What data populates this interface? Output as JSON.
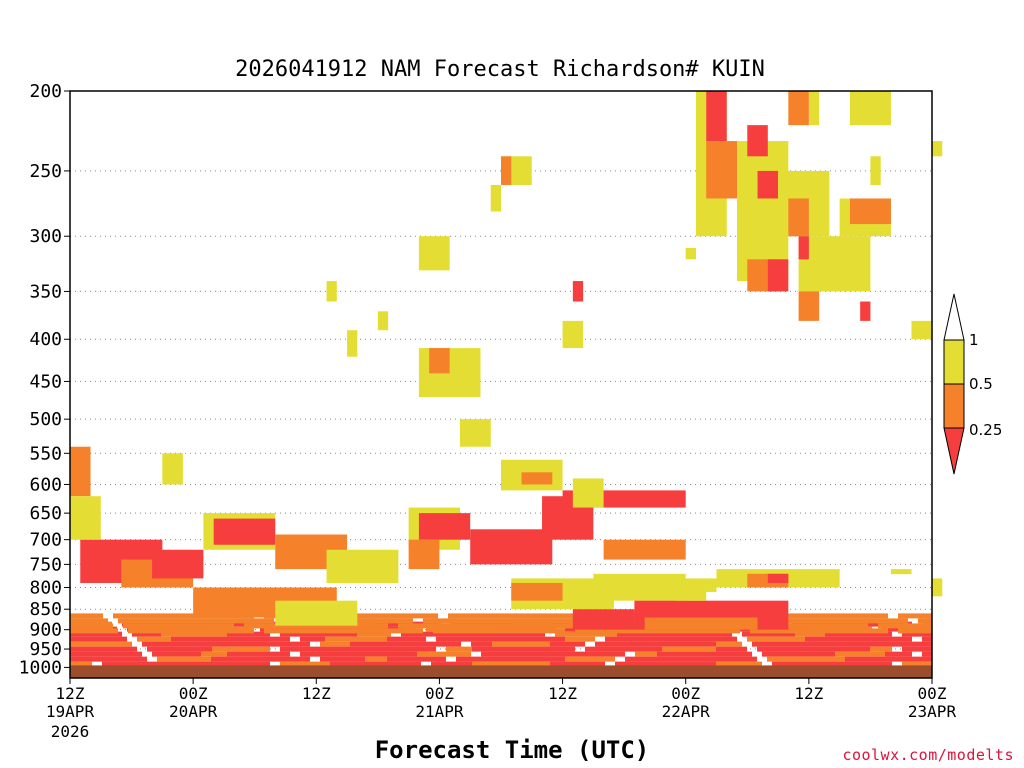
{
  "chart_data": {
    "type": "heatmap",
    "title": "2026041912 NAM Forecast Richardson# KUIN",
    "xlabel": "Forecast Time (UTC)",
    "ylabel": "",
    "y_axis": {
      "scale": "log-pressure",
      "range_hPa": [
        1000,
        200
      ],
      "ticks": [
        200,
        250,
        300,
        350,
        400,
        450,
        500,
        550,
        600,
        650,
        700,
        750,
        800,
        850,
        900,
        950,
        1000
      ]
    },
    "x_axis": {
      "range_hours": [
        0,
        84
      ],
      "ticks": [
        {
          "hour": 0,
          "label": "12Z",
          "sub1": "19APR",
          "sub2": "2026"
        },
        {
          "hour": 12,
          "label": "00Z",
          "sub1": "20APR",
          "sub2": ""
        },
        {
          "hour": 24,
          "label": "12Z",
          "sub1": "",
          "sub2": ""
        },
        {
          "hour": 36,
          "label": "00Z",
          "sub1": "21APR",
          "sub2": ""
        },
        {
          "hour": 48,
          "label": "12Z",
          "sub1": "",
          "sub2": ""
        },
        {
          "hour": 60,
          "label": "00Z",
          "sub1": "22APR",
          "sub2": ""
        },
        {
          "hour": 72,
          "label": "12Z",
          "sub1": "",
          "sub2": ""
        },
        {
          "hour": 84,
          "label": "00Z",
          "sub1": "23APR",
          "sub2": ""
        }
      ]
    },
    "legend": {
      "placement": "right",
      "labels": [
        "1",
        "0.5",
        "0.25"
      ],
      "bins": [
        {
          "range": "< 0.25",
          "color": "#f73e3e"
        },
        {
          "range": "0.25 - 0.5",
          "color": "#f5822a"
        },
        {
          "range": "0.5 - 1",
          "color": "#e4dd33"
        },
        {
          "range": "> 1",
          "color": "#ffffff"
        }
      ]
    },
    "colors": {
      "low": "#f73e3e",
      "mid": "#f5822a",
      "high": "#e4dd33",
      "ground": "#9b4d2c"
    },
    "ground_level_hPa": 1000,
    "regions": [
      {
        "level": "mid",
        "t": [
          0,
          2
        ],
        "p": [
          540,
          620
        ]
      },
      {
        "level": "low",
        "t": [
          1,
          9
        ],
        "p": [
          700,
          790
        ]
      },
      {
        "level": "high",
        "t": [
          0,
          3
        ],
        "p": [
          620,
          700
        ]
      },
      {
        "level": "mid",
        "t": [
          5,
          12
        ],
        "p": [
          740,
          800
        ]
      },
      {
        "level": "low",
        "t": [
          8,
          13
        ],
        "p": [
          720,
          780
        ]
      },
      {
        "level": "high",
        "t": [
          9,
          11
        ],
        "p": [
          550,
          600
        ]
      },
      {
        "level": "high",
        "t": [
          13,
          20
        ],
        "p": [
          650,
          720
        ]
      },
      {
        "level": "low",
        "t": [
          14,
          20
        ],
        "p": [
          660,
          710
        ]
      },
      {
        "level": "mid",
        "t": [
          12,
          26
        ],
        "p": [
          800,
          870
        ]
      },
      {
        "level": "high",
        "t": [
          20,
          28
        ],
        "p": [
          830,
          890
        ]
      },
      {
        "level": "mid",
        "t": [
          20,
          27
        ],
        "p": [
          690,
          760
        ]
      },
      {
        "level": "high",
        "t": [
          25,
          32
        ],
        "p": [
          720,
          790
        ]
      },
      {
        "level": "high",
        "t": [
          25,
          26
        ],
        "p": [
          340,
          360
        ]
      },
      {
        "level": "high",
        "t": [
          27,
          28
        ],
        "p": [
          390,
          420
        ]
      },
      {
        "level": "high",
        "t": [
          30,
          31
        ],
        "p": [
          370,
          390
        ]
      },
      {
        "level": "high",
        "t": [
          33,
          38
        ],
        "p": [
          640,
          720
        ]
      },
      {
        "level": "low",
        "t": [
          34,
          39
        ],
        "p": [
          650,
          700
        ]
      },
      {
        "level": "mid",
        "t": [
          33,
          36
        ],
        "p": [
          700,
          760
        ]
      },
      {
        "level": "high",
        "t": [
          34,
          37
        ],
        "p": [
          300,
          330
        ]
      },
      {
        "level": "high",
        "t": [
          34,
          40
        ],
        "p": [
          410,
          470
        ]
      },
      {
        "level": "mid",
        "t": [
          35,
          37
        ],
        "p": [
          410,
          440
        ]
      },
      {
        "level": "high",
        "t": [
          38,
          41
        ],
        "p": [
          500,
          540
        ]
      },
      {
        "level": "high",
        "t": [
          41,
          42
        ],
        "p": [
          260,
          280
        ]
      },
      {
        "level": "high",
        "t": [
          42,
          45
        ],
        "p": [
          240,
          260
        ]
      },
      {
        "level": "mid",
        "t": [
          42,
          43
        ],
        "p": [
          240,
          260
        ]
      },
      {
        "level": "low",
        "t": [
          39,
          47
        ],
        "p": [
          680,
          750
        ]
      },
      {
        "level": "high",
        "t": [
          42,
          48
        ],
        "p": [
          560,
          610
        ]
      },
      {
        "level": "mid",
        "t": [
          44,
          47
        ],
        "p": [
          580,
          600
        ]
      },
      {
        "level": "high",
        "t": [
          43,
          53
        ],
        "p": [
          780,
          850
        ]
      },
      {
        "level": "mid",
        "t": [
          43,
          48
        ],
        "p": [
          790,
          830
        ]
      },
      {
        "level": "low",
        "t": [
          46,
          51
        ],
        "p": [
          620,
          700
        ]
      },
      {
        "level": "low",
        "t": [
          48,
          60
        ],
        "p": [
          610,
          640
        ]
      },
      {
        "level": "high",
        "t": [
          49,
          52
        ],
        "p": [
          590,
          640
        ]
      },
      {
        "level": "high",
        "t": [
          48,
          50
        ],
        "p": [
          380,
          410
        ]
      },
      {
        "level": "low",
        "t": [
          49,
          50
        ],
        "p": [
          340,
          360
        ]
      },
      {
        "level": "mid",
        "t": [
          52,
          60
        ],
        "p": [
          700,
          740
        ]
      },
      {
        "level": "high",
        "t": [
          51,
          60
        ],
        "p": [
          770,
          830
        ]
      },
      {
        "level": "low",
        "t": [
          49,
          55
        ],
        "p": [
          850,
          900
        ]
      },
      {
        "level": "low",
        "t": [
          55,
          70
        ],
        "p": [
          830,
          900
        ]
      },
      {
        "level": "mid",
        "t": [
          56,
          67
        ],
        "p": [
          870,
          900
        ]
      },
      {
        "level": "high",
        "t": [
          59,
          62
        ],
        "p": [
          790,
          830
        ]
      },
      {
        "level": "high",
        "t": [
          60,
          61
        ],
        "p": [
          310,
          320
        ]
      },
      {
        "level": "high",
        "t": [
          61,
          64
        ],
        "p": [
          200,
          300
        ]
      },
      {
        "level": "low",
        "t": [
          62,
          64
        ],
        "p": [
          200,
          230
        ]
      },
      {
        "level": "mid",
        "t": [
          62,
          65
        ],
        "p": [
          230,
          270
        ]
      },
      {
        "level": "high",
        "t": [
          65,
          70
        ],
        "p": [
          230,
          340
        ]
      },
      {
        "level": "low",
        "t": [
          66,
          68
        ],
        "p": [
          220,
          240
        ]
      },
      {
        "level": "low",
        "t": [
          67,
          69
        ],
        "p": [
          250,
          270
        ]
      },
      {
        "level": "mid",
        "t": [
          66,
          69
        ],
        "p": [
          320,
          350
        ]
      },
      {
        "level": "low",
        "t": [
          68,
          70
        ],
        "p": [
          320,
          350
        ]
      },
      {
        "level": "high",
        "t": [
          69,
          74
        ],
        "p": [
          250,
          300
        ]
      },
      {
        "level": "mid",
        "t": [
          70,
          72
        ],
        "p": [
          270,
          300
        ]
      },
      {
        "level": "high",
        "t": [
          71,
          78
        ],
        "p": [
          300,
          350
        ]
      },
      {
        "level": "low",
        "t": [
          71,
          72
        ],
        "p": [
          300,
          320
        ]
      },
      {
        "level": "mid",
        "t": [
          71,
          73
        ],
        "p": [
          350,
          380
        ]
      },
      {
        "level": "high",
        "t": [
          72,
          73
        ],
        "p": [
          200,
          220
        ]
      },
      {
        "level": "mid",
        "t": [
          70,
          72
        ],
        "p": [
          200,
          220
        ]
      },
      {
        "level": "high",
        "t": [
          76,
          80
        ],
        "p": [
          200,
          220
        ]
      },
      {
        "level": "high",
        "t": [
          75,
          80
        ],
        "p": [
          270,
          300
        ]
      },
      {
        "level": "mid",
        "t": [
          76,
          80
        ],
        "p": [
          270,
          290
        ]
      },
      {
        "level": "low",
        "t": [
          77,
          78
        ],
        "p": [
          360,
          380
        ]
      },
      {
        "level": "high",
        "t": [
          78,
          79
        ],
        "p": [
          240,
          260
        ]
      },
      {
        "level": "high",
        "t": [
          82,
          84
        ],
        "p": [
          380,
          400
        ]
      },
      {
        "level": "high",
        "t": [
          84,
          85
        ],
        "p": [
          230,
          240
        ]
      },
      {
        "level": "high",
        "t": [
          56,
          63
        ],
        "p": [
          780,
          810
        ]
      },
      {
        "level": "high",
        "t": [
          63,
          75
        ],
        "p": [
          760,
          800
        ]
      },
      {
        "level": "mid",
        "t": [
          66,
          70
        ],
        "p": [
          770,
          800
        ]
      },
      {
        "level": "low",
        "t": [
          68,
          70
        ],
        "p": [
          770,
          790
        ]
      },
      {
        "level": "high",
        "t": [
          80,
          82
        ],
        "p": [
          760,
          770
        ]
      },
      {
        "level": "high",
        "t": [
          84,
          85
        ],
        "p": [
          780,
          820
        ]
      }
    ],
    "band_rows": [
      {
        "level": "low",
        "t": [
          0,
          84
        ],
        "p": [
          880,
          1000
        ]
      },
      {
        "level": "mid",
        "t": [
          0,
          84
        ],
        "p": [
          860,
          900
        ]
      }
    ]
  },
  "credit": "coolwx.com/modelts"
}
